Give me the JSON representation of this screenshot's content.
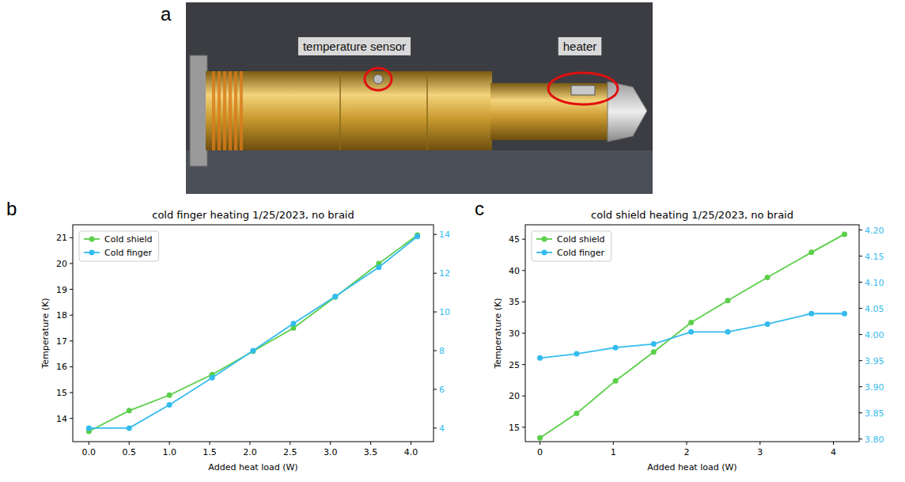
{
  "photo": {
    "panel": "a",
    "labels": [
      "temperature sensor",
      "heater"
    ]
  },
  "chart_data": [
    {
      "panel": "b",
      "type": "line",
      "title": "cold finger heating 1/25/2023, no braid",
      "x_label": "Added heat load (W)",
      "y_label": "Temperature (K)",
      "x": [
        0,
        0.5,
        1.0,
        1.53,
        2.04,
        2.54,
        3.06,
        3.6,
        4.08
      ],
      "xlim": [
        -0.2,
        4.28
      ],
      "xticks": [
        {
          "value": 0,
          "label": "0.0"
        },
        0.5,
        {
          "value": 1,
          "label": "1.0"
        },
        1.5,
        {
          "value": 2,
          "label": "2.0"
        },
        2.5,
        {
          "value": 3,
          "label": "3.0"
        },
        3.5,
        {
          "value": 4,
          "label": "4.0"
        }
      ],
      "ylim": [
        13.1,
        21.5
      ],
      "yticks": [
        14,
        15,
        16,
        17,
        18,
        19,
        20,
        21
      ],
      "y2lim": [
        3.3,
        14.5
      ],
      "y2ticks": [
        4,
        6,
        8,
        10,
        12,
        14
      ],
      "legend": "upper left",
      "grid": false,
      "marker": "o",
      "series": [
        {
          "name": "Cold shield",
          "color": "#5ccf4a",
          "values": [
            13.5,
            14.3,
            14.9,
            15.7,
            16.6,
            17.5,
            18.7,
            20.0,
            21.1
          ]
        },
        {
          "name": "Cold finger",
          "color": "#33bbee",
          "axis": "y2",
          "values": [
            4.0,
            4.0,
            5.2,
            6.6,
            8.0,
            9.4,
            10.8,
            12.3,
            13.9
          ]
        }
      ]
    },
    {
      "panel": "c",
      "type": "line",
      "title": "cold shield heating 1/25/2023, no braid",
      "x_label": "Added heat load (W)",
      "y_label": "Temperature (K)",
      "x": [
        0,
        0.5,
        1.03,
        1.55,
        2.06,
        2.56,
        3.1,
        3.7,
        4.15
      ],
      "xlim": [
        -0.2,
        4.35
      ],
      "xticks": [
        0,
        1,
        2,
        3,
        4
      ],
      "ylim": [
        12.7,
        47.3
      ],
      "yticks": [
        15,
        20,
        25,
        30,
        35,
        40,
        45
      ],
      "y2lim": [
        3.795,
        4.21
      ],
      "y2ticks": [
        {
          "value": 3.8,
          "label": "3.80"
        },
        3.85,
        {
          "value": 3.9,
          "label": "3.90"
        },
        3.95,
        {
          "value": 4.0,
          "label": "4.00"
        },
        4.05,
        {
          "value": 4.1,
          "label": "4.10"
        },
        4.15,
        {
          "value": 4.2,
          "label": "4.20"
        }
      ],
      "legend": "upper left",
      "grid": false,
      "marker": "o",
      "series": [
        {
          "name": "Cold shield",
          "color": "#5ccf4a",
          "values": [
            13.3,
            17.2,
            22.4,
            27.0,
            31.7,
            35.2,
            38.9,
            42.9,
            45.8
          ]
        },
        {
          "name": "Cold finger",
          "color": "#33bbee",
          "axis": "y2",
          "values": [
            3.955,
            3.963,
            3.975,
            3.982,
            4.005,
            4.005,
            4.02,
            4.04,
            4.04
          ]
        }
      ]
    }
  ]
}
